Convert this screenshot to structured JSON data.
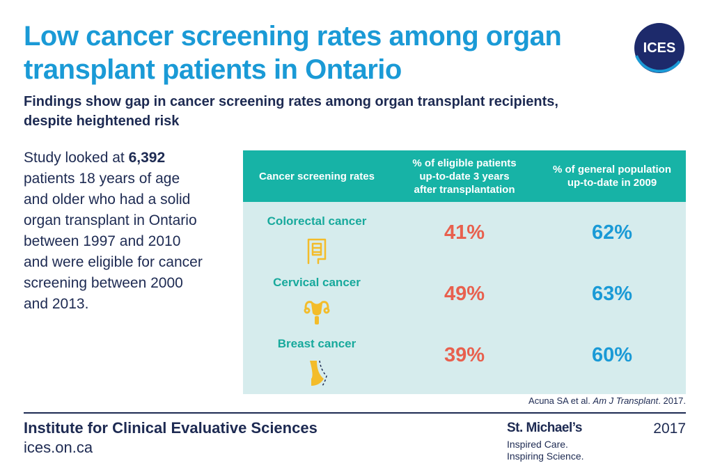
{
  "header": {
    "title_lines": [
      "Low cancer screening rates among organ",
      "transplant patients in Ontario"
    ],
    "subtitle_lines": [
      "Findings show gap in cancer screening rates among organ transplant recipients,",
      "despite heightened risk"
    ]
  },
  "logo": {
    "text": "ICES",
    "color": "#1d2a6b"
  },
  "intro": {
    "line1_pre": "Study looked at ",
    "line1_bold": "6,392",
    "lines": [
      "patients 18 years of age",
      "and older who had a solid",
      "organ transplant in Ontario",
      "between 1997 and 2010",
      "and were eligible for cancer",
      "screening between 2000",
      "and 2013."
    ]
  },
  "table": {
    "header_col1": "Cancer screening rates",
    "header_col2_lines": [
      "% of eligible patients",
      "up-to-date 3 years",
      "after transplantation"
    ],
    "header_col3_lines": [
      "% of general population",
      "up-to-date in 2009"
    ],
    "rows": [
      {
        "label": "Colorectal cancer",
        "icon": "intestine-icon",
        "transplant": "41%",
        "general": "62%"
      },
      {
        "label": "Cervical cancer",
        "icon": "uterus-icon",
        "transplant": "49%",
        "general": "63%"
      },
      {
        "label": "Breast cancer",
        "icon": "breast-icon",
        "transplant": "39%",
        "general": "60%"
      }
    ]
  },
  "citation": {
    "authors": "Acuna  SA et al. ",
    "journal": "Am J Transplant",
    "year": ". 2017."
  },
  "footer": {
    "institute": "Institute for Clinical Evaluative Sciences",
    "url": "ices.on.ca",
    "partner_name": "St. Michael’s",
    "partner_tag_lines": [
      "Inspired Care.",
      "Inspiring Science."
    ],
    "year": "2017"
  },
  "colors": {
    "title_blue": "#1a9ad6",
    "navy": "#1d2a52",
    "teal_header": "#17b3a6",
    "table_bg": "#d6eced",
    "transplant_red": "#e8604e",
    "icon_gold": "#f3bc2a"
  }
}
